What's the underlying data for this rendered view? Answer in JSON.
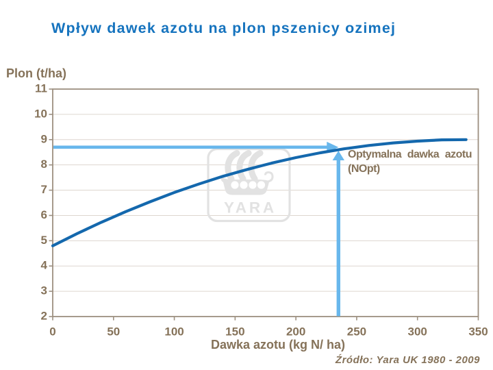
{
  "slide": {
    "watermark": "YARA",
    "source": "Źródło: Yara UK 1980 - 2009"
  },
  "chart_data": {
    "type": "line",
    "title": "Wpływ dawek azotu na plon pszenicy ozimej",
    "xlabel": "Dawka azotu (kg N/ ha)",
    "ylabel": "Plon (t/ha)",
    "xlim": [
      0,
      350
    ],
    "ylim": [
      2,
      11
    ],
    "x_ticks": [
      0,
      50,
      100,
      150,
      200,
      250,
      300,
      350
    ],
    "y_ticks": [
      2,
      3,
      4,
      5,
      6,
      7,
      8,
      9,
      10,
      11
    ],
    "grid": "horizontal",
    "legend": "none",
    "series": [
      {
        "name": "Plon pszenicy ozimej",
        "color": "#1468ad",
        "x": [
          0,
          20,
          40,
          60,
          80,
          100,
          120,
          140,
          160,
          180,
          200,
          220,
          240,
          260,
          280,
          300,
          320,
          340
        ],
        "y": [
          4.8,
          5.28,
          5.73,
          6.15,
          6.54,
          6.91,
          7.24,
          7.55,
          7.82,
          8.07,
          8.29,
          8.48,
          8.64,
          8.77,
          8.87,
          8.94,
          8.99,
          9.0
        ]
      }
    ],
    "annotation": {
      "text": "Optymalna dawka azotu (NOpt)",
      "line1": "Optymalna dawka azotu",
      "line2": "(NOpt)"
    },
    "optimal": {
      "x": 235,
      "yield_line": 8.7,
      "arrow_color": "#68b7ec"
    },
    "colors": {
      "title": "#1573be",
      "text": "#857259",
      "axis": "#9c8f80",
      "grid": "#ddd6cf",
      "curve": "#1468ad",
      "arrow": "#68b7ec",
      "watermark": "#e2e2e2"
    }
  }
}
